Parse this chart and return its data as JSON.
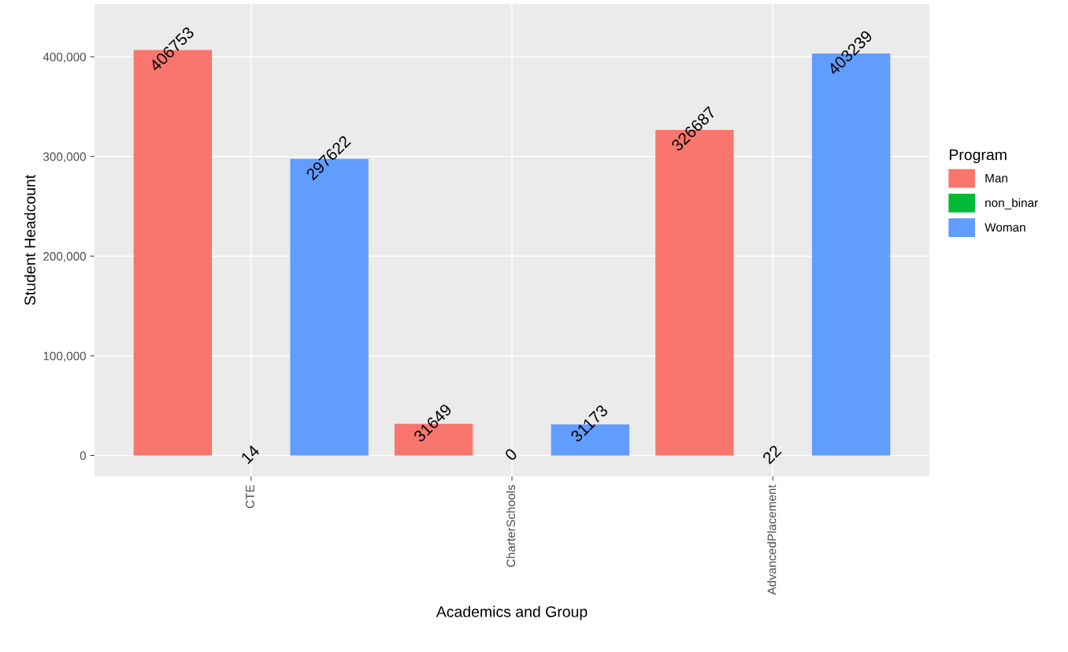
{
  "chart_data": {
    "type": "bar",
    "xlabel": "Academics and Group",
    "ylabel": "Student Headcount",
    "legend_title": "Program",
    "categories": [
      "CTE",
      "CharterSchools",
      "AdvancedPlacement"
    ],
    "series": [
      {
        "name": "Man",
        "color": "#f8766d",
        "values": [
          406753,
          31649,
          326687
        ]
      },
      {
        "name": "non_binar",
        "color": "#00ba38",
        "values": [
          14,
          0,
          22
        ]
      },
      {
        "name": "Woman",
        "color": "#619cff",
        "values": [
          297622,
          31173,
          403239
        ]
      }
    ],
    "ylim": [
      -21000,
      453000
    ],
    "yticks": [
      {
        "value": 0,
        "label": "0"
      },
      {
        "value": 100000,
        "label": "100,000"
      },
      {
        "value": 200000,
        "label": "200,000"
      },
      {
        "value": 300000,
        "label": "300,000"
      },
      {
        "value": 400000,
        "label": "400,000"
      }
    ],
    "grid": true,
    "legend": "right",
    "data_labels": true
  }
}
